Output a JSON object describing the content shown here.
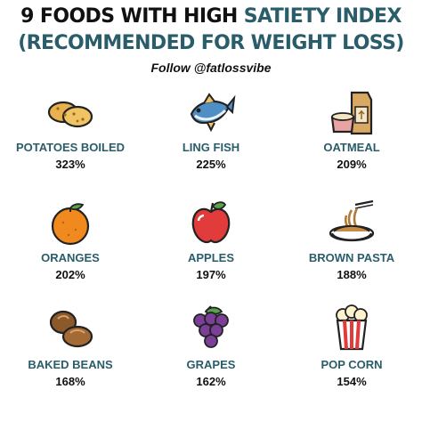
{
  "header": {
    "title_part1": "9 FOODS WITH HIGH",
    "title_part2": "SATIETY INDEX",
    "subtitle": "(RECOMMENDED FOR WEIGHT LOSS)",
    "follow": "Follow @fatlossvibe"
  },
  "foods": [
    {
      "name": "POTATOES BOILED",
      "value": "323%",
      "icon": "potatoes-icon"
    },
    {
      "name": "LING FISH",
      "value": "225%",
      "icon": "fish-icon"
    },
    {
      "name": "OATMEAL",
      "value": "209%",
      "icon": "oatmeal-icon"
    },
    {
      "name": "ORANGES",
      "value": "202%",
      "icon": "orange-icon"
    },
    {
      "name": "APPLES",
      "value": "197%",
      "icon": "apple-icon"
    },
    {
      "name": "BROWN PASTA",
      "value": "188%",
      "icon": "pasta-icon"
    },
    {
      "name": "BAKED BEANS",
      "value": "168%",
      "icon": "beans-icon"
    },
    {
      "name": "GRAPES",
      "value": "162%",
      "icon": "grapes-icon"
    },
    {
      "name": "POP CORN",
      "value": "154%",
      "icon": "popcorn-icon"
    }
  ],
  "colors": {
    "heading_teal": "#2a5d6a",
    "text_dark": "#111111"
  }
}
